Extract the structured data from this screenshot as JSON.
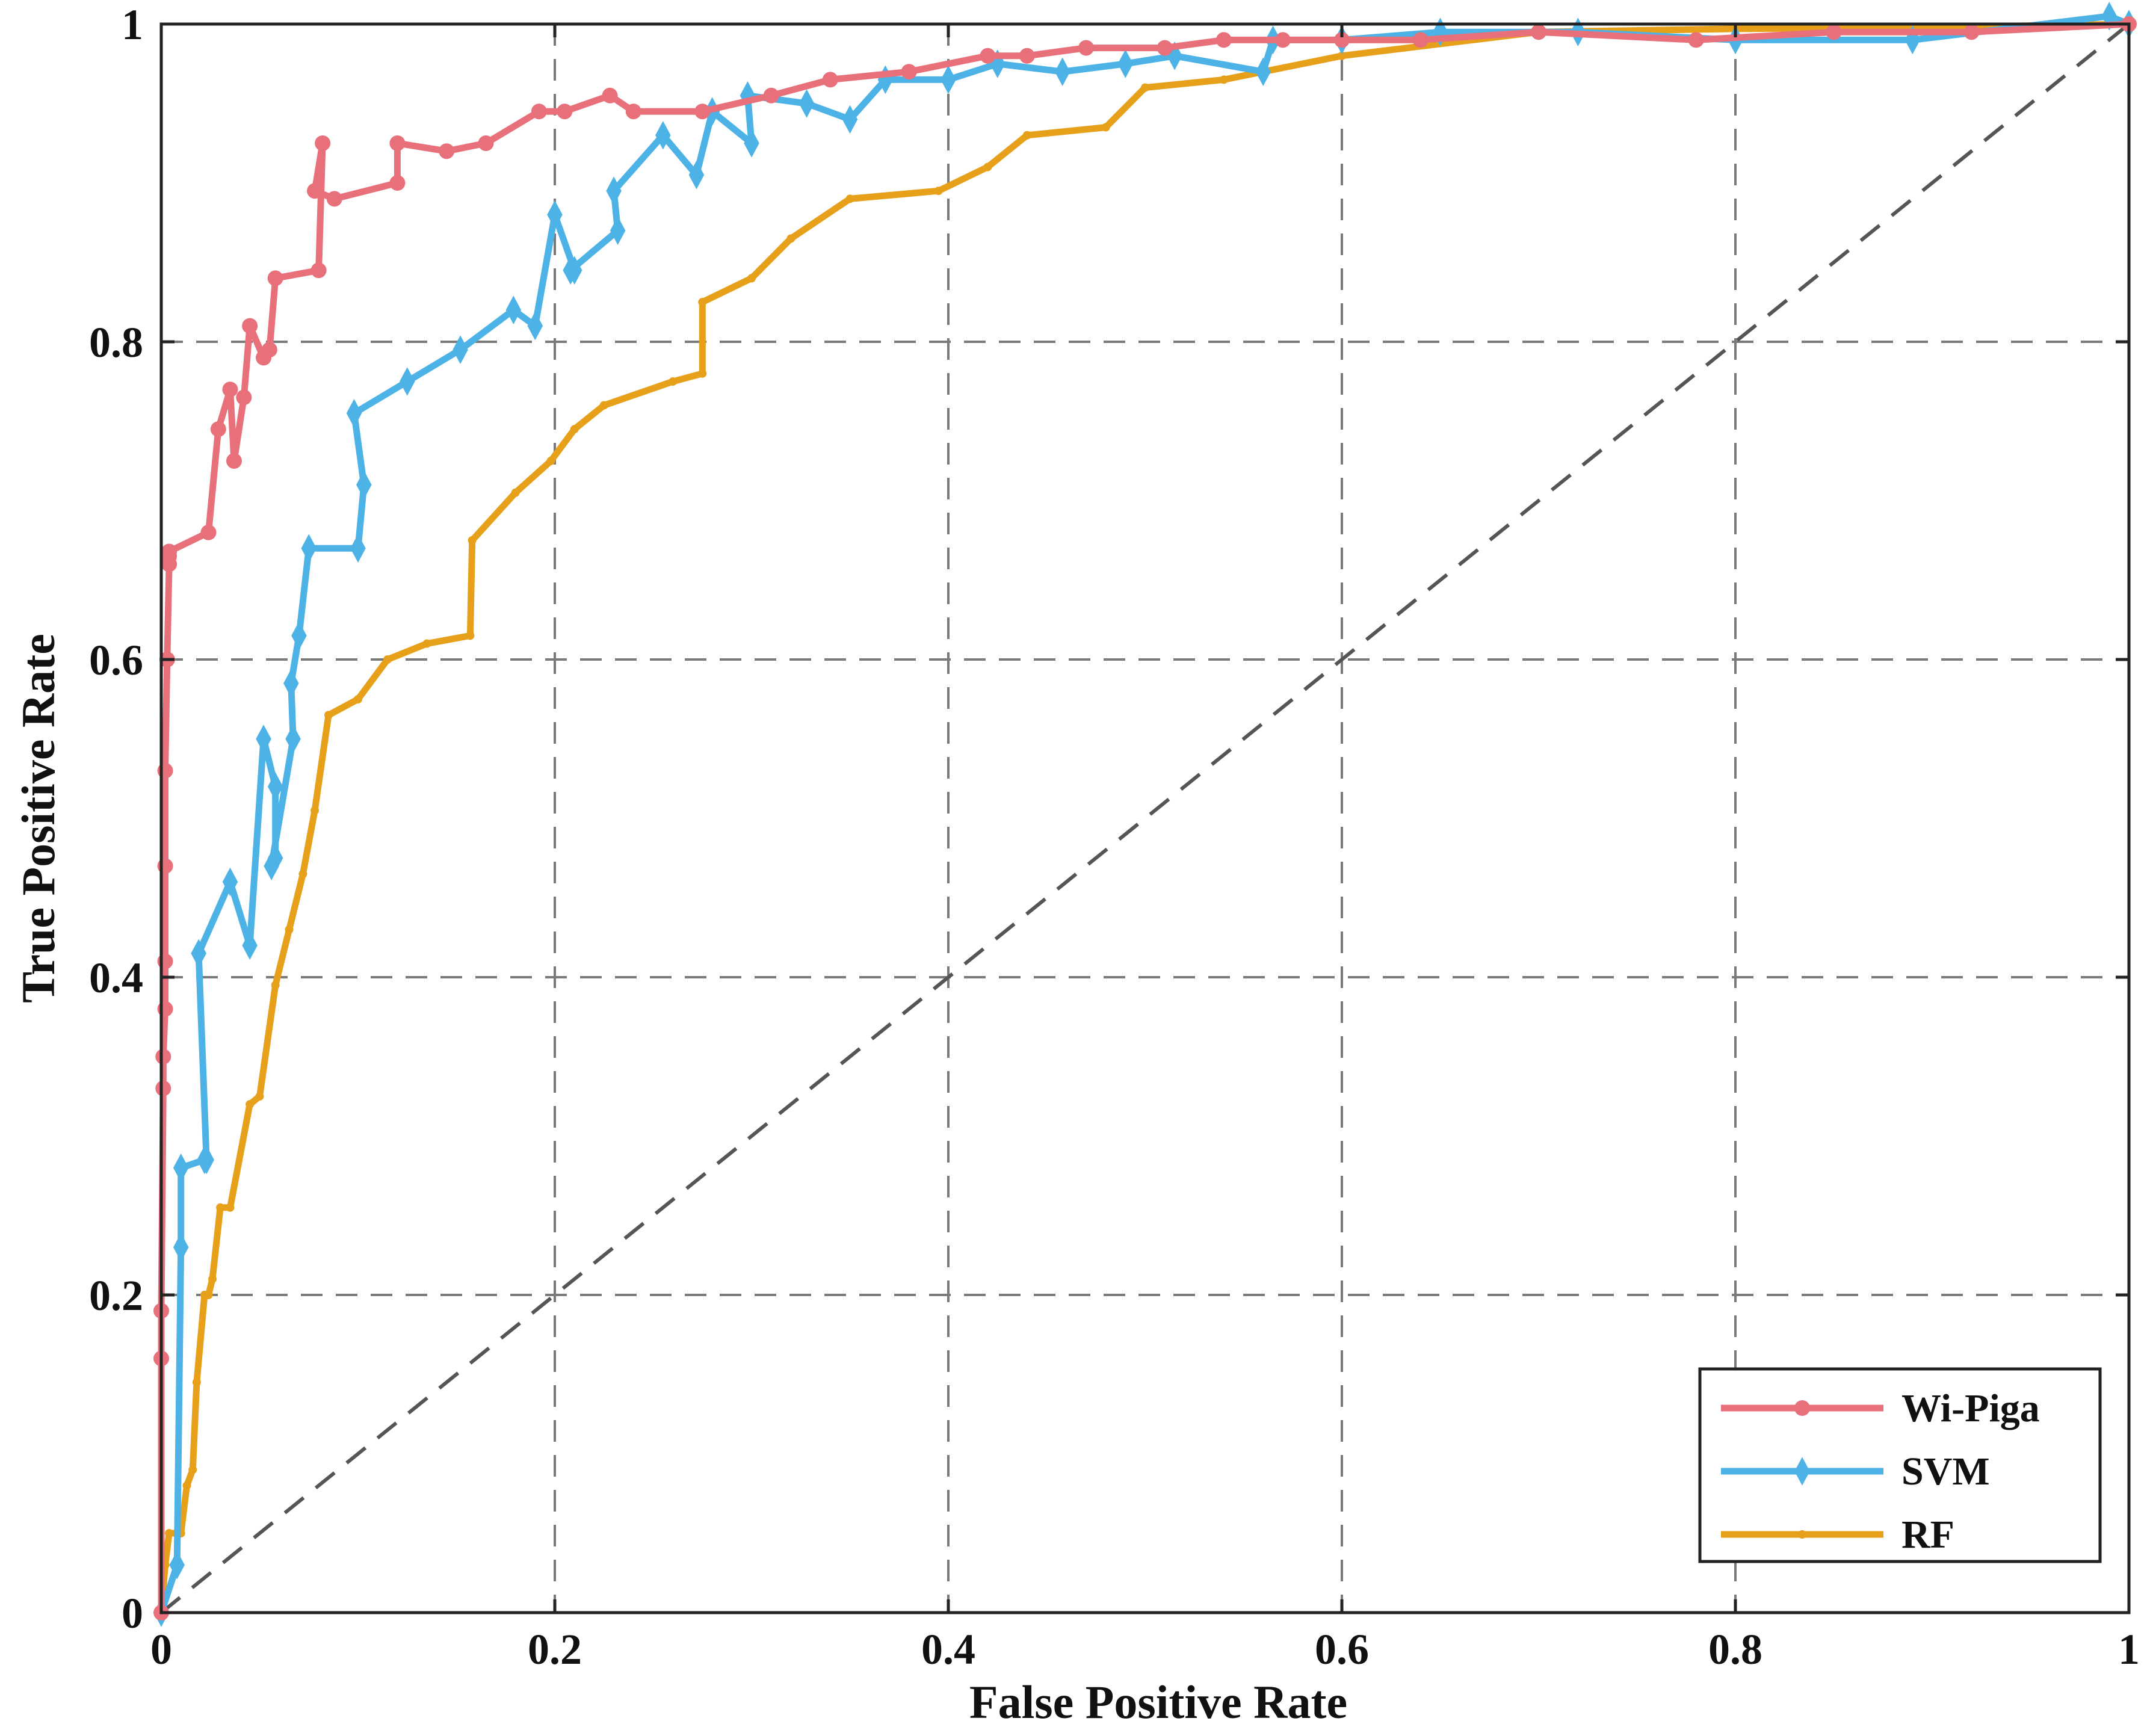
{
  "chart_data": {
    "type": "line",
    "title": "",
    "xlabel": "False Positive Rate",
    "ylabel": "True Positive Rate",
    "xlim": [
      0,
      1
    ],
    "ylim": [
      0,
      1
    ],
    "xticks": [
      "0",
      "0.2",
      "0.4",
      "0.6",
      "0.8",
      "1"
    ],
    "yticks": [
      "0",
      "0.2",
      "0.4",
      "0.6",
      "0.8",
      "1"
    ],
    "grid": true,
    "legend_position": "bottom-right",
    "colors": {
      "wi_piga": "#e8707a",
      "svm": "#4db3e6",
      "rf": "#e6a01a",
      "chance": "#555555",
      "grid": "#7a7a7a"
    },
    "series": [
      {
        "name": "Wi-Piga",
        "marker": "circle",
        "x": [
          0.0,
          0.0,
          0.0,
          0.001,
          0.001,
          0.002,
          0.002,
          0.002,
          0.002,
          0.003,
          0.004,
          0.004,
          0.004,
          0.024,
          0.029,
          0.035,
          0.037,
          0.042,
          0.045,
          0.052,
          0.055,
          0.058,
          0.08,
          0.082,
          0.078,
          0.088,
          0.12,
          0.12,
          0.145,
          0.165,
          0.192,
          0.205,
          0.228,
          0.24,
          0.275,
          0.31,
          0.34,
          0.38,
          0.42,
          0.44,
          0.47,
          0.51,
          0.54,
          0.57,
          0.6,
          0.64,
          0.7,
          0.78,
          0.85,
          0.92,
          1.0
        ],
        "y": [
          0.0,
          0.16,
          0.19,
          0.33,
          0.35,
          0.38,
          0.41,
          0.47,
          0.53,
          0.6,
          0.66,
          0.665,
          0.668,
          0.68,
          0.745,
          0.77,
          0.725,
          0.765,
          0.81,
          0.79,
          0.795,
          0.84,
          0.845,
          0.925,
          0.895,
          0.89,
          0.9,
          0.925,
          0.92,
          0.925,
          0.945,
          0.945,
          0.955,
          0.945,
          0.945,
          0.955,
          0.965,
          0.97,
          0.98,
          0.98,
          0.985,
          0.985,
          0.99,
          0.99,
          0.99,
          0.99,
          0.995,
          0.99,
          0.995,
          0.995,
          1.0
        ]
      },
      {
        "name": "SVM",
        "marker": "diamond",
        "x": [
          0.0,
          0.008,
          0.01,
          0.01,
          0.022,
          0.023,
          0.019,
          0.019,
          0.035,
          0.045,
          0.052,
          0.058,
          0.058,
          0.056,
          0.067,
          0.066,
          0.07,
          0.075,
          0.1,
          0.103,
          0.098,
          0.125,
          0.152,
          0.179,
          0.19,
          0.2,
          0.21,
          0.208,
          0.232,
          0.23,
          0.255,
          0.272,
          0.28,
          0.3,
          0.298,
          0.328,
          0.35,
          0.368,
          0.4,
          0.425,
          0.458,
          0.49,
          0.515,
          0.56,
          0.565,
          0.6,
          0.65,
          0.72,
          0.8,
          0.89,
          0.99,
          1.0
        ],
        "y": [
          0.0,
          0.03,
          0.23,
          0.28,
          0.285,
          0.285,
          0.415,
          0.415,
          0.46,
          0.42,
          0.55,
          0.52,
          0.475,
          0.47,
          0.55,
          0.585,
          0.615,
          0.67,
          0.67,
          0.71,
          0.755,
          0.775,
          0.795,
          0.82,
          0.81,
          0.88,
          0.845,
          0.845,
          0.87,
          0.895,
          0.93,
          0.905,
          0.945,
          0.925,
          0.955,
          0.95,
          0.94,
          0.965,
          0.965,
          0.975,
          0.97,
          0.975,
          0.98,
          0.97,
          0.99,
          0.99,
          0.995,
          0.995,
          0.99,
          0.99,
          1.005,
          1.0
        ]
      },
      {
        "name": "RF",
        "marker": "plus",
        "x": [
          0.0,
          0.002,
          0.004,
          0.01,
          0.013,
          0.016,
          0.018,
          0.022,
          0.024,
          0.026,
          0.03,
          0.035,
          0.045,
          0.05,
          0.058,
          0.065,
          0.072,
          0.078,
          0.085,
          0.1,
          0.115,
          0.135,
          0.157,
          0.158,
          0.18,
          0.198,
          0.21,
          0.225,
          0.26,
          0.275,
          0.275,
          0.3,
          0.32,
          0.35,
          0.395,
          0.42,
          0.44,
          0.48,
          0.5,
          0.54,
          0.6,
          0.7,
          0.8,
          0.9,
          1.0
        ],
        "y": [
          0.0,
          0.03,
          0.05,
          0.05,
          0.08,
          0.09,
          0.145,
          0.2,
          0.2,
          0.21,
          0.255,
          0.255,
          0.32,
          0.325,
          0.395,
          0.43,
          0.465,
          0.505,
          0.565,
          0.575,
          0.6,
          0.61,
          0.615,
          0.675,
          0.705,
          0.725,
          0.745,
          0.76,
          0.775,
          0.78,
          0.825,
          0.84,
          0.865,
          0.89,
          0.895,
          0.91,
          0.93,
          0.935,
          0.96,
          0.965,
          0.98,
          0.995,
          0.997,
          0.998,
          1.0
        ]
      }
    ],
    "reference_line": {
      "name": "chance",
      "x": [
        0,
        1
      ],
      "y": [
        0,
        1
      ]
    }
  }
}
